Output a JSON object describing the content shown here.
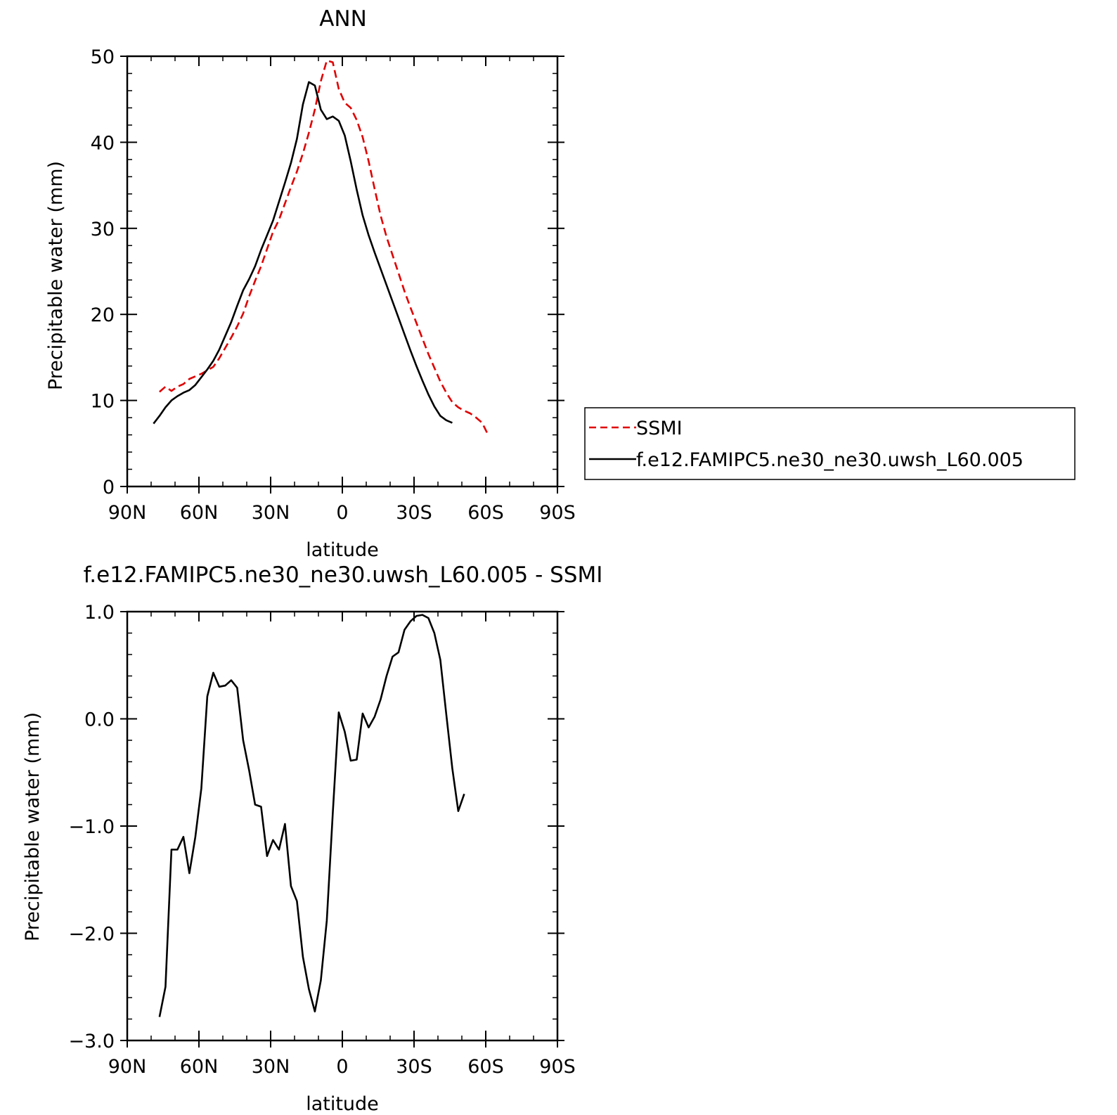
{
  "chart_data": [
    {
      "type": "line",
      "title": "ANN",
      "xlabel": "latitude",
      "ylabel": "Precipitable water (mm)",
      "xlim": [
        90,
        -90
      ],
      "ylim": [
        0,
        50
      ],
      "x_note_units": "degrees latitude, north positive",
      "xticks": [
        90,
        60,
        30,
        0,
        -30,
        -60,
        -90
      ],
      "xtick_labels": [
        "90N",
        "60N",
        "30N",
        "0",
        "30S",
        "60S",
        "90S"
      ],
      "yticks": [
        0,
        10,
        20,
        30,
        40,
        50
      ],
      "ytick_labels": [
        "0",
        "10",
        "20",
        "30",
        "40",
        "50"
      ],
      "grid": false,
      "legend_position": "right",
      "series": [
        {
          "name": "SSMI",
          "color": "#e00000",
          "style": "dashed",
          "points": [
            [
              76.5,
              11.0
            ],
            [
              74,
              11.6
            ],
            [
              71.5,
              11.1
            ],
            [
              69,
              11.6
            ],
            [
              66.5,
              11.9
            ],
            [
              64,
              12.5
            ],
            [
              61.5,
              12.8
            ],
            [
              59,
              13.1
            ],
            [
              56.5,
              13.5
            ],
            [
              54,
              13.9
            ],
            [
              51.5,
              14.9
            ],
            [
              49,
              16.1
            ],
            [
              46.5,
              17.3
            ],
            [
              44,
              18.6
            ],
            [
              41.5,
              20.1
            ],
            [
              39,
              22.1
            ],
            [
              36.5,
              23.9
            ],
            [
              34,
              25.6
            ],
            [
              31.5,
              27.6
            ],
            [
              29,
              29.6
            ],
            [
              26.5,
              31.0
            ],
            [
              24,
              32.9
            ],
            [
              21.5,
              34.8
            ],
            [
              19,
              36.6
            ],
            [
              16.5,
              38.7
            ],
            [
              14,
              41.1
            ],
            [
              11.5,
              43.8
            ],
            [
              9,
              47.1
            ],
            [
              6.5,
              49.5
            ],
            [
              4,
              49.3
            ],
            [
              1.5,
              46.2
            ],
            [
              -1,
              44.6
            ],
            [
              -3.5,
              44.0
            ],
            [
              -6,
              42.6
            ],
            [
              -8.5,
              40.6
            ],
            [
              -11,
              37.8
            ],
            [
              -13.5,
              34.6
            ],
            [
              -16,
              31.5
            ],
            [
              -18.5,
              29.0
            ],
            [
              -21,
              26.9
            ],
            [
              -23.5,
              24.8
            ],
            [
              -26,
              22.7
            ],
            [
              -28.5,
              20.8
            ],
            [
              -31,
              19.0
            ],
            [
              -33.5,
              17.2
            ],
            [
              -36,
              15.4
            ],
            [
              -38.5,
              13.8
            ],
            [
              -41,
              12.2
            ],
            [
              -43.5,
              10.9
            ],
            [
              -46,
              9.8
            ],
            [
              -48.5,
              9.2
            ],
            [
              -51,
              8.8
            ],
            [
              -53.5,
              8.5
            ],
            [
              -56,
              8.0
            ],
            [
              -58.5,
              7.4
            ],
            [
              -61,
              6.0
            ]
          ]
        },
        {
          "name": "f.e12.FAMIPC5.ne30_ne30.uwsh_L60.005",
          "color": "#000000",
          "style": "solid",
          "points": [
            [
              79,
              7.3
            ],
            [
              76.5,
              8.2
            ],
            [
              74,
              9.2
            ],
            [
              71.5,
              10.0
            ],
            [
              69,
              10.5
            ],
            [
              66.5,
              10.9
            ],
            [
              64,
              11.2
            ],
            [
              61.5,
              11.8
            ],
            [
              59,
              12.7
            ],
            [
              56.5,
              13.6
            ],
            [
              54,
              14.6
            ],
            [
              51.5,
              15.9
            ],
            [
              49,
              17.5
            ],
            [
              46.5,
              19.1
            ],
            [
              44,
              21.0
            ],
            [
              41.5,
              22.8
            ],
            [
              39,
              24.1
            ],
            [
              36.5,
              25.6
            ],
            [
              34,
              27.5
            ],
            [
              31.5,
              29.2
            ],
            [
              29,
              30.9
            ],
            [
              26.5,
              33.1
            ],
            [
              24,
              35.3
            ],
            [
              21.5,
              37.6
            ],
            [
              19,
              40.4
            ],
            [
              16.5,
              44.4
            ],
            [
              14,
              47.0
            ],
            [
              11.5,
              46.6
            ],
            [
              9,
              43.8
            ],
            [
              6.5,
              42.7
            ],
            [
              4,
              43.0
            ],
            [
              1.5,
              42.5
            ],
            [
              -1,
              40.8
            ],
            [
              -3.5,
              37.8
            ],
            [
              -6,
              34.5
            ],
            [
              -8.5,
              31.5
            ],
            [
              -11,
              29.2
            ],
            [
              -13.5,
              27.2
            ],
            [
              -16,
              25.3
            ],
            [
              -18.5,
              23.4
            ],
            [
              -21,
              21.5
            ],
            [
              -23.5,
              19.6
            ],
            [
              -26,
              17.7
            ],
            [
              -28.5,
              15.8
            ],
            [
              -31,
              14.0
            ],
            [
              -33.5,
              12.3
            ],
            [
              -36,
              10.7
            ],
            [
              -38.5,
              9.3
            ],
            [
              -41,
              8.2
            ],
            [
              -43.5,
              7.7
            ],
            [
              -46,
              7.4
            ]
          ]
        }
      ]
    },
    {
      "type": "line",
      "title": "f.e12.FAMIPC5.ne30_ne30.uwsh_L60.005 - SSMI",
      "xlabel": "latitude",
      "ylabel": "Precipitable water (mm)",
      "xlim": [
        90,
        -90
      ],
      "ylim": [
        -3.0,
        1.0
      ],
      "xticks": [
        90,
        60,
        30,
        0,
        -30,
        -60,
        -90
      ],
      "xtick_labels": [
        "90N",
        "60N",
        "30N",
        "0",
        "30S",
        "60S",
        "90S"
      ],
      "yticks": [
        -3.0,
        -2.0,
        -1.0,
        0.0,
        1.0
      ],
      "ytick_labels": [
        "−3.0",
        "−2.0",
        "−1.0",
        "0.0",
        "1.0"
      ],
      "grid": false,
      "series": [
        {
          "color": "#000000",
          "style": "solid",
          "points": [
            [
              76.5,
              -2.78
            ],
            [
              74,
              -2.5
            ],
            [
              71.5,
              -1.22
            ],
            [
              69,
              -1.22
            ],
            [
              66.5,
              -1.1
            ],
            [
              64,
              -1.44
            ],
            [
              61.5,
              -1.1
            ],
            [
              59,
              -0.65
            ],
            [
              56.5,
              0.21
            ],
            [
              54,
              0.43
            ],
            [
              51.5,
              0.3
            ],
            [
              49,
              0.31
            ],
            [
              46.5,
              0.36
            ],
            [
              44,
              0.29
            ],
            [
              41.5,
              -0.2
            ],
            [
              39,
              -0.48
            ],
            [
              36.5,
              -0.8
            ],
            [
              34,
              -0.82
            ],
            [
              31.5,
              -1.28
            ],
            [
              29,
              -1.13
            ],
            [
              26.5,
              -1.22
            ],
            [
              24,
              -0.98
            ],
            [
              21.5,
              -1.56
            ],
            [
              19,
              -1.7
            ],
            [
              16.5,
              -2.22
            ],
            [
              14,
              -2.52
            ],
            [
              11.5,
              -2.73
            ],
            [
              9,
              -2.44
            ],
            [
              6.5,
              -1.88
            ],
            [
              4,
              -0.88
            ],
            [
              1.5,
              0.06
            ],
            [
              -1,
              -0.12
            ],
            [
              -3.5,
              -0.39
            ],
            [
              -6,
              -0.38
            ],
            [
              -8.5,
              0.05
            ],
            [
              -11,
              -0.08
            ],
            [
              -13.5,
              0.02
            ],
            [
              -16,
              0.18
            ],
            [
              -18.5,
              0.4
            ],
            [
              -21,
              0.58
            ],
            [
              -23.5,
              0.62
            ],
            [
              -26,
              0.83
            ],
            [
              -28.5,
              0.91
            ],
            [
              -31,
              0.96
            ],
            [
              -33.5,
              0.97
            ],
            [
              -36,
              0.94
            ],
            [
              -38.5,
              0.8
            ],
            [
              -41,
              0.55
            ],
            [
              -43.5,
              0.04
            ],
            [
              -46,
              -0.46
            ],
            [
              -48.5,
              -0.86
            ],
            [
              -51,
              -0.7
            ]
          ]
        }
      ]
    }
  ]
}
